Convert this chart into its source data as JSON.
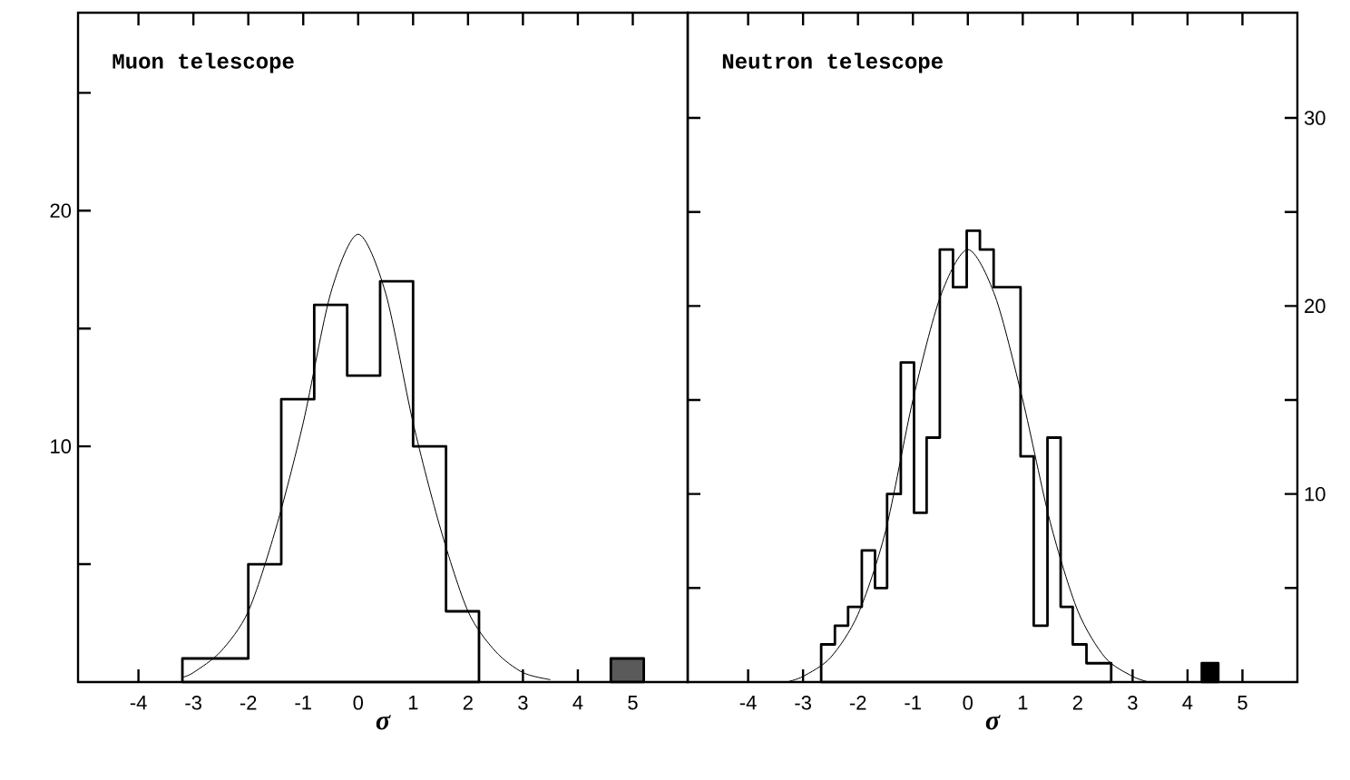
{
  "chart_data": [
    {
      "type": "histogram",
      "title": "Muon telescope",
      "xlabel": "σ",
      "xlim": [
        -5.1,
        6
      ],
      "xticks": [
        -4,
        -3,
        -2,
        -1,
        0,
        1,
        2,
        3,
        4,
        5
      ],
      "ylim": [
        0,
        28.4
      ],
      "yticks": [
        {
          "value": 5,
          "label": null
        },
        10,
        {
          "value": 15,
          "label": null
        },
        20,
        {
          "value": 25,
          "label": null
        }
      ],
      "grid": false,
      "marker": "none",
      "series": [
        {
          "color": "#ffffff",
          "bins": [
            -3.2,
            -2.6,
            -2.0,
            -1.4,
            -0.8,
            -0.2,
            0.4,
            1.0,
            1.6,
            2.2
          ],
          "values": [
            1,
            1,
            5,
            12,
            16,
            13,
            17,
            10,
            3
          ]
        },
        {
          "color": "#5a5a5a",
          "bins": [
            4.6,
            5.2
          ],
          "values": [
            1
          ]
        },
        {
          "type": "line",
          "color": "#000000",
          "x": [
            -3.2,
            -3.0,
            -2.5,
            -2.0,
            -1.5,
            -1.0,
            -0.5,
            0,
            0.5,
            1.0,
            1.5,
            2.0,
            2.5,
            3.0,
            3.5
          ],
          "values": [
            0.2,
            0.4,
            1.3,
            3.0,
            6.5,
            11,
            16.5,
            19,
            16.5,
            11,
            6.5,
            3.0,
            1.3,
            0.4,
            0.1
          ]
        }
      ]
    },
    {
      "type": "histogram",
      "title": "Neutron telescope",
      "xlabel": "σ",
      "xlim": [
        -5.1,
        6
      ],
      "xticks": [
        -4,
        -3,
        -2,
        -1,
        0,
        1,
        2,
        3,
        4,
        5
      ],
      "y2lim": [
        0,
        35.6
      ],
      "y2ticks": [
        {
          "value": 5,
          "label": null
        },
        10,
        {
          "value": 15,
          "label": null
        },
        20,
        {
          "value": 25,
          "label": null
        },
        30
      ],
      "grid": false,
      "marker": "none",
      "series": [
        {
          "axis": "y2",
          "color": "#ffffff",
          "bins": [
            -2.67,
            -2.42,
            -2.18,
            -1.93,
            -1.69,
            -1.47,
            -1.22,
            -0.98,
            -0.75,
            -0.51,
            -0.27,
            -0.02,
            0.22,
            0.47,
            0.71,
            0.96,
            1.2,
            1.45,
            1.69,
            1.91,
            2.16,
            2.4,
            2.61
          ],
          "values": [
            2,
            3,
            4,
            7,
            5,
            10,
            17,
            9,
            13,
            23,
            21,
            24,
            23,
            21,
            21,
            12,
            3,
            13,
            4,
            2,
            1,
            1
          ]
        },
        {
          "axis": "y2",
          "color": "#000000",
          "bins": [
            4.26,
            4.56
          ],
          "values": [
            1
          ]
        },
        {
          "type": "line",
          "axis": "y2",
          "color": "#000000",
          "x": [
            -3.3,
            -3.0,
            -2.5,
            -2.0,
            -1.5,
            -1.0,
            -0.5,
            0,
            0.5,
            1.0,
            1.5,
            2.0,
            2.5,
            3.0,
            3.3
          ],
          "values": [
            0,
            0.3,
            1.3,
            3.6,
            8,
            15,
            20.5,
            23,
            20.5,
            15,
            8.5,
            3.8,
            1.3,
            0.3,
            0
          ]
        }
      ]
    }
  ]
}
